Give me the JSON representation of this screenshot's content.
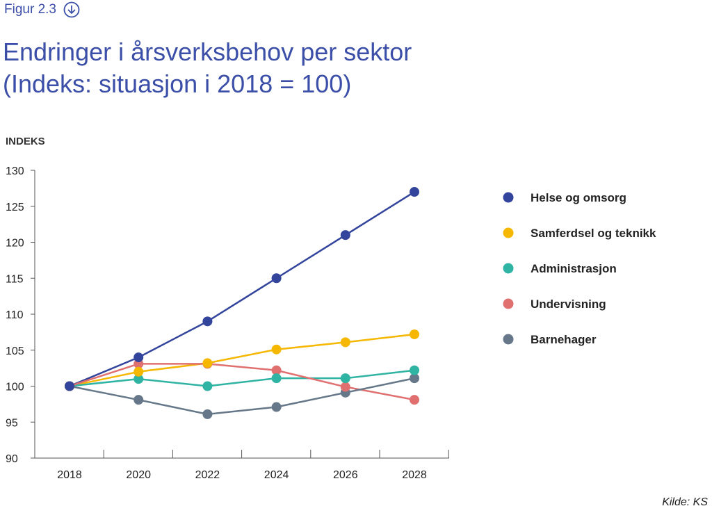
{
  "figure_label": "Figur 2.3",
  "title_line1": "Endringer i årsverksbehov per sektor",
  "title_line2": "(Indeks: situasjon i 2018 = 100)",
  "source": "Kilde: KS",
  "icons": {
    "download": "download-circle-arrow-icon"
  },
  "chart_data": {
    "type": "line",
    "ylabel": "INDEKS",
    "xlabel": "",
    "ylim": [
      90,
      130
    ],
    "yticks": [
      "130",
      "125",
      "120",
      "115",
      "110",
      "105",
      "100",
      "95",
      "90"
    ],
    "categories": [
      "2018",
      "2020",
      "2022",
      "2024",
      "2026",
      "2028"
    ],
    "grid": false,
    "legend_position": "right",
    "series": [
      {
        "name": "Helse og omsorg",
        "color": "#33449c",
        "values": [
          100,
          104,
          109,
          115,
          121,
          127
        ]
      },
      {
        "name": "Samferdsel og teknikk",
        "color": "#f5b700",
        "values": [
          100,
          102,
          103.2,
          105.1,
          106.1,
          107.2
        ]
      },
      {
        "name": "Administrasjon",
        "color": "#2fb3a3",
        "values": [
          100,
          101,
          100,
          101.1,
          101.1,
          102.2
        ]
      },
      {
        "name": "Undervisning",
        "color": "#e07070",
        "values": [
          100,
          103.1,
          103.1,
          102.2,
          99.9,
          98.1
        ]
      },
      {
        "name": "Barnehager",
        "color": "#657788",
        "values": [
          100,
          98.1,
          96.1,
          97.1,
          99.1,
          101.1
        ]
      }
    ]
  }
}
